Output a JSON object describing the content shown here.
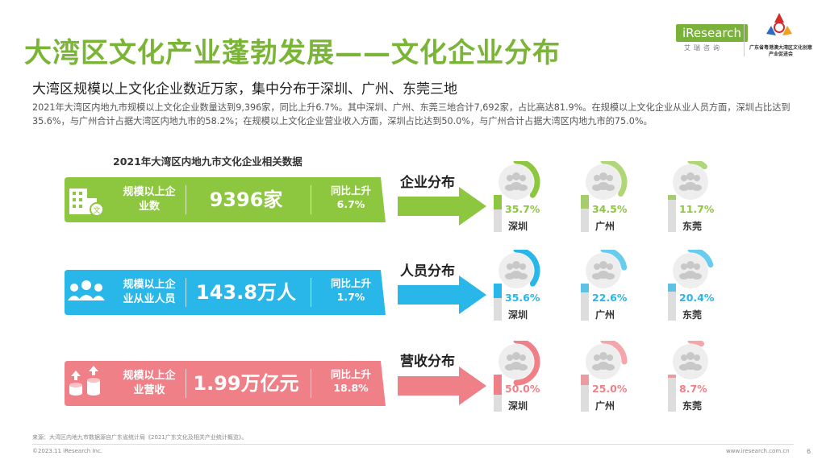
{
  "page": {
    "title": "大湾区文化产业蓬勃发展——文化企业分布",
    "subtitle": "大湾区规模以上文化企业数近万家，集中分布于深圳、广州、东莞三地",
    "paragraph": "2021年大湾区内地九市规模以上文化企业数量达到9,396家，同比上升6.7%。其中深圳、广州、东莞三地合计7,692家，占比高达81.9%。在规模以上文化企业从业人员方面，深圳占比达到35.6%，与广州合计占据大湾区内地九市的58.2%；在规模以上文化企业营业收入方面，深圳占比达到50.0%，与广州合计占据大湾区内地九市的75.0%。",
    "table_title": "2021年大湾区内地九市文化企业相关数据",
    "source": "来源：大湾区内地九市数据源自广东省统计局《2021广东文化及相关产业统计概览》。",
    "copyright": "©2023.11 iResearch Inc.",
    "website": "www.iresearch.com.cn",
    "page_number": "6"
  },
  "logos": {
    "iresearch": "iResearch",
    "iresearch_cn": "艾瑞咨询",
    "association": "广东省粤港澳大湾区文化创意产业促进会"
  },
  "colors": {
    "title_green": "#7ab536",
    "green": "#8dc63f",
    "blue": "#29b6e8",
    "pink": "#ef8088",
    "circle_bg": "#eeeeee"
  },
  "bands": [
    {
      "label": "规模以上企业数",
      "label_lines": [
        "规模以上企",
        "业数"
      ],
      "value": "9396家",
      "yoy_label": "同比上升",
      "yoy_value": "6.7%",
      "icon": "building-icon"
    },
    {
      "label": "规模以上企业从业人员",
      "label_lines": [
        "规模以上企",
        "业从业人员"
      ],
      "value": "143.8万人",
      "yoy_label": "同比上升",
      "yoy_value": "1.7%",
      "icon": "people-icon"
    },
    {
      "label": "规模以上企业营收",
      "label_lines": [
        "规模以上企",
        "业营收"
      ],
      "value": "1.99万亿元",
      "yoy_label": "同比上升",
      "yoy_value": "18.8%",
      "icon": "coins-icon"
    }
  ],
  "chart_data": [
    {
      "type": "pie",
      "title": "企业分布",
      "categories": [
        "深圳",
        "广州",
        "东莞"
      ],
      "values": [
        35.7,
        34.5,
        11.7
      ],
      "labels": [
        "35.7%",
        "34.5%",
        "11.7%"
      ],
      "unit": "%",
      "color": "#8dc63f"
    },
    {
      "type": "pie",
      "title": "人员分布",
      "categories": [
        "深圳",
        "广州",
        "东莞"
      ],
      "values": [
        35.6,
        22.6,
        20.4
      ],
      "labels": [
        "35.6%",
        "22.6%",
        "20.4%"
      ],
      "unit": "%",
      "color": "#29b6e8"
    },
    {
      "type": "pie",
      "title": "营收分布",
      "categories": [
        "深圳",
        "广州",
        "东莞"
      ],
      "values": [
        50.0,
        25.0,
        8.7
      ],
      "labels": [
        "50.0%",
        "25.0%",
        "8.7%"
      ],
      "unit": "%",
      "color": "#ef8088"
    }
  ]
}
